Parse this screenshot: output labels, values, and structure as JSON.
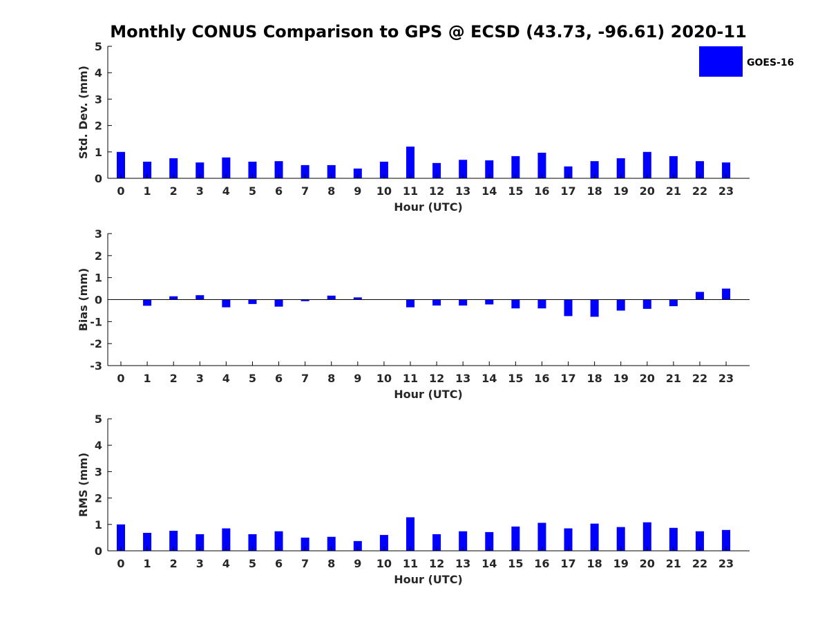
{
  "title": "Monthly CONUS Comparison to GPS @ ECSD (43.73, -96.61) 2020-11",
  "legend": {
    "label": "GOES-16",
    "color": "#0000ff"
  },
  "chart_data": [
    {
      "type": "bar",
      "title": "",
      "xlabel": "Hour (UTC)",
      "ylabel": "Std. Dev. (mm)",
      "ylim": [
        0,
        5
      ],
      "yticks": [
        0,
        1,
        2,
        3,
        4,
        5
      ],
      "categories": [
        0,
        1,
        2,
        3,
        4,
        5,
        6,
        7,
        8,
        9,
        10,
        11,
        12,
        13,
        14,
        15,
        16,
        17,
        18,
        19,
        20,
        21,
        22,
        23
      ],
      "series": [
        {
          "name": "GOES-16",
          "values": [
            1.0,
            0.63,
            0.76,
            0.6,
            0.79,
            0.63,
            0.65,
            0.5,
            0.5,
            0.37,
            0.63,
            1.2,
            0.58,
            0.7,
            0.68,
            0.84,
            0.97,
            0.45,
            0.65,
            0.76,
            1.0,
            0.84,
            0.65,
            0.6
          ]
        }
      ]
    },
    {
      "type": "bar",
      "title": "",
      "xlabel": "Hour (UTC)",
      "ylabel": "Bias (mm)",
      "ylim": [
        -3,
        3
      ],
      "yticks": [
        -3,
        -2,
        -1,
        0,
        1,
        2,
        3
      ],
      "categories": [
        0,
        1,
        2,
        3,
        4,
        5,
        6,
        7,
        8,
        9,
        10,
        11,
        12,
        13,
        14,
        15,
        16,
        17,
        18,
        19,
        20,
        21,
        22,
        23
      ],
      "series": [
        {
          "name": "GOES-16",
          "values": [
            0,
            -0.28,
            0.15,
            0.2,
            -0.35,
            -0.2,
            -0.32,
            -0.07,
            0.18,
            0.1,
            0,
            -0.35,
            -0.27,
            -0.27,
            -0.22,
            -0.4,
            -0.4,
            -0.75,
            -0.78,
            -0.5,
            -0.42,
            -0.3,
            0.35,
            0.5
          ]
        }
      ]
    },
    {
      "type": "bar",
      "title": "",
      "xlabel": "Hour (UTC)",
      "ylabel": "RMS (mm)",
      "ylim": [
        0,
        5
      ],
      "yticks": [
        0,
        1,
        2,
        3,
        4,
        5
      ],
      "categories": [
        0,
        1,
        2,
        3,
        4,
        5,
        6,
        7,
        8,
        9,
        10,
        11,
        12,
        13,
        14,
        15,
        16,
        17,
        18,
        19,
        20,
        21,
        22,
        23
      ],
      "series": [
        {
          "name": "GOES-16",
          "values": [
            1.0,
            0.68,
            0.76,
            0.63,
            0.85,
            0.63,
            0.74,
            0.5,
            0.53,
            0.37,
            0.6,
            1.27,
            0.63,
            0.74,
            0.71,
            0.92,
            1.06,
            0.85,
            1.03,
            0.9,
            1.08,
            0.87,
            0.74,
            0.79
          ]
        }
      ]
    }
  ]
}
